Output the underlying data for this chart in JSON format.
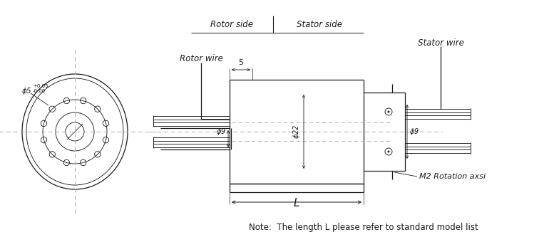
{
  "bg_color": "#ffffff",
  "line_color": "#1a1a1a",
  "dashed_color": "#888888",
  "text_color": "#1a1a1a",
  "note_text": "Note:  The length L please refer to standard model list",
  "rotor_side_label": "Rotor side",
  "stator_side_label": "Stator side",
  "rotor_wire_label": "Rotor wire",
  "stator_wire_label": "Stator wire",
  "dim_L": "L",
  "m2_label": "M2 Rotation axsi",
  "fig_width": 7.77,
  "fig_height": 3.4,
  "dpi": 100
}
